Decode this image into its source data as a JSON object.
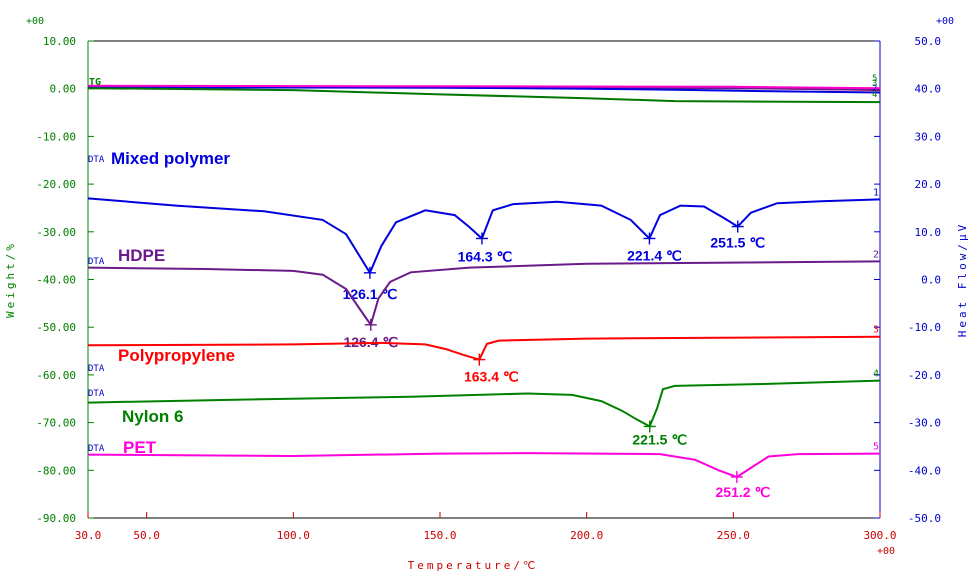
{
  "chart_data": {
    "type": "line",
    "xlabel": "Temperature/℃",
    "ylabel_left": "Weight/%",
    "ylabel_right": "Heat Flow/μV",
    "xlim": [
      30,
      300
    ],
    "ylim_left": [
      -90,
      10
    ],
    "ylim_right": [
      -50,
      50
    ],
    "exponent_top_left": "+00",
    "exponent_top_right": "+00",
    "exponent_bottom_right": "+00",
    "x_ticks": [
      {
        "v": 30,
        "label": "30.0"
      },
      {
        "v": 50,
        "label": "50.0"
      },
      {
        "v": 100,
        "label": "100.0"
      },
      {
        "v": 150,
        "label": "150.0"
      },
      {
        "v": 200,
        "label": "200.0"
      },
      {
        "v": 250,
        "label": "250.0"
      },
      {
        "v": 300,
        "label": "300.0"
      }
    ],
    "y_left_ticks": [
      {
        "v": 10,
        "label": "10.00"
      },
      {
        "v": 0,
        "label": "0.00"
      },
      {
        "v": -10,
        "label": "-10.00"
      },
      {
        "v": -20,
        "label": "-20.00"
      },
      {
        "v": -30,
        "label": "-30.00"
      },
      {
        "v": -40,
        "label": "-40.00"
      },
      {
        "v": -50,
        "label": "-50.00"
      },
      {
        "v": -60,
        "label": "-60.00"
      },
      {
        "v": -70,
        "label": "-70.00"
      },
      {
        "v": -80,
        "label": "-80.00"
      },
      {
        "v": -90,
        "label": "-90.00"
      }
    ],
    "y_right_ticks": [
      {
        "v": 50,
        "label": "50.0"
      },
      {
        "v": 40,
        "label": "40.0"
      },
      {
        "v": 30,
        "label": "30.0"
      },
      {
        "v": 20,
        "label": "20.0"
      },
      {
        "v": 10,
        "label": "10.0"
      },
      {
        "v": 0,
        "label": "0.0"
      },
      {
        "v": -10,
        "label": "-10.0"
      },
      {
        "v": -20,
        "label": "-20.0"
      },
      {
        "v": -30,
        "label": "-30.0"
      },
      {
        "v": -40,
        "label": "-40.0"
      },
      {
        "v": -50,
        "label": "-50.0"
      }
    ],
    "tg": {
      "label": "TG",
      "lines": [
        {
          "color": "#ff0000",
          "points": [
            [
              30,
              0.4
            ],
            [
              150,
              0.3
            ],
            [
              250,
              0.2
            ],
            [
              300,
              -0.3
            ]
          ]
        },
        {
          "color": "#6a1b8a",
          "points": [
            [
              30,
              0.5
            ],
            [
              150,
              0.4
            ],
            [
              250,
              0.1
            ],
            [
              300,
              -0.2
            ]
          ]
        },
        {
          "color": "#0000e0",
          "points": [
            [
              30,
              0.3
            ],
            [
              150,
              0.2
            ],
            [
              200,
              0.0
            ],
            [
              230,
              -0.2
            ],
            [
              260,
              -0.5
            ],
            [
              300,
              -0.8
            ]
          ]
        },
        {
          "color": "#007700",
          "points": [
            [
              30,
              0.1
            ],
            [
              100,
              -0.3
            ],
            [
              150,
              -1.2
            ],
            [
              200,
              -2.0
            ],
            [
              230,
              -2.6
            ],
            [
              260,
              -2.7
            ],
            [
              300,
              -2.8
            ]
          ]
        },
        {
          "color": "#ff00cc",
          "points": [
            [
              30,
              0.6
            ],
            [
              150,
              0.5
            ],
            [
              250,
              0.4
            ],
            [
              300,
              0.1
            ]
          ]
        }
      ],
      "end_labels": [
        "5",
        "3",
        "2",
        "4"
      ]
    },
    "series": [
      {
        "name": "Mixed polymer",
        "color": "#0000dd",
        "end_label": "1",
        "points": [
          [
            30,
            17.0
          ],
          [
            60,
            15.5
          ],
          [
            90,
            14.3
          ],
          [
            110,
            12.5
          ],
          [
            118,
            9.5
          ],
          [
            123,
            4.5
          ],
          [
            126.1,
            1.4
          ],
          [
            130,
            7.0
          ],
          [
            135,
            12.0
          ],
          [
            145,
            14.5
          ],
          [
            155,
            13.5
          ],
          [
            160,
            11.0
          ],
          [
            164.3,
            8.6
          ],
          [
            168,
            14.5
          ],
          [
            175,
            15.8
          ],
          [
            190,
            16.3
          ],
          [
            205,
            15.5
          ],
          [
            215,
            12.5
          ],
          [
            221.4,
            8.6
          ],
          [
            225,
            13.5
          ],
          [
            232,
            15.5
          ],
          [
            240,
            15.3
          ],
          [
            247,
            12.8
          ],
          [
            251.5,
            11.1
          ],
          [
            256,
            14.0
          ],
          [
            265,
            16.0
          ],
          [
            280,
            16.4
          ],
          [
            300,
            16.8
          ]
        ],
        "peaks": [
          {
            "x": 126.1,
            "y": 1.4,
            "label": "126.1 ℃"
          },
          {
            "x": 164.3,
            "y": 8.6,
            "label": "164.3 ℃"
          },
          {
            "x": 221.4,
            "y": 8.6,
            "label": "221.4 ℃"
          },
          {
            "x": 251.5,
            "y": 11.1,
            "label": "251.5 ℃"
          }
        ]
      },
      {
        "name": "HDPE",
        "color": "#6a1b8a",
        "end_label": "2",
        "points": [
          [
            30,
            2.5
          ],
          [
            70,
            2.2
          ],
          [
            100,
            1.8
          ],
          [
            110,
            1.0
          ],
          [
            118,
            -2.0
          ],
          [
            123,
            -6.5
          ],
          [
            126.4,
            -9.5
          ],
          [
            129,
            -4.0
          ],
          [
            133,
            -0.5
          ],
          [
            140,
            1.5
          ],
          [
            160,
            2.5
          ],
          [
            200,
            3.3
          ],
          [
            300,
            3.8
          ]
        ],
        "peaks": [
          {
            "x": 126.4,
            "y": -9.5,
            "label": "126.4 ℃"
          }
        ]
      },
      {
        "name": "Polypropylene",
        "color": "#ff0000",
        "end_label": "3",
        "points": [
          [
            30,
            -13.8
          ],
          [
            100,
            -13.6
          ],
          [
            130,
            -13.3
          ],
          [
            145,
            -13.6
          ],
          [
            152,
            -14.6
          ],
          [
            158,
            -15.8
          ],
          [
            163.4,
            -16.8
          ],
          [
            166,
            -13.5
          ],
          [
            170,
            -12.8
          ],
          [
            200,
            -12.4
          ],
          [
            300,
            -12.0
          ]
        ],
        "peaks": [
          {
            "x": 163.4,
            "y": -16.8,
            "label": "163.4 ℃"
          }
        ]
      },
      {
        "name": "Nylon 6",
        "color": "#008000",
        "end_label": "4",
        "points": [
          [
            30,
            -25.8
          ],
          [
            80,
            -25.2
          ],
          [
            140,
            -24.6
          ],
          [
            180,
            -23.9
          ],
          [
            195,
            -24.2
          ],
          [
            205,
            -25.5
          ],
          [
            212,
            -27.5
          ],
          [
            217,
            -29.3
          ],
          [
            221.5,
            -30.8
          ],
          [
            224,
            -27.0
          ],
          [
            226,
            -23.0
          ],
          [
            230,
            -22.3
          ],
          [
            260,
            -21.9
          ],
          [
            300,
            -21.2
          ]
        ],
        "peaks": [
          {
            "x": 221.5,
            "y": -30.8,
            "label": "221.5 ℃"
          }
        ]
      },
      {
        "name": "PET",
        "color": "#ff00dd",
        "end_label": "5",
        "points": [
          [
            30,
            -36.7
          ],
          [
            100,
            -37.0
          ],
          [
            150,
            -36.5
          ],
          [
            180,
            -36.4
          ],
          [
            225,
            -36.6
          ],
          [
            237,
            -37.8
          ],
          [
            245,
            -40.0
          ],
          [
            251.2,
            -41.4
          ],
          [
            256,
            -39.5
          ],
          [
            262,
            -37.1
          ],
          [
            272,
            -36.6
          ],
          [
            300,
            -36.5
          ]
        ],
        "peaks": [
          {
            "x": 251.2,
            "y": -41.4,
            "label": "251.2 ℃"
          }
        ]
      }
    ],
    "dta_label": "DTA"
  }
}
